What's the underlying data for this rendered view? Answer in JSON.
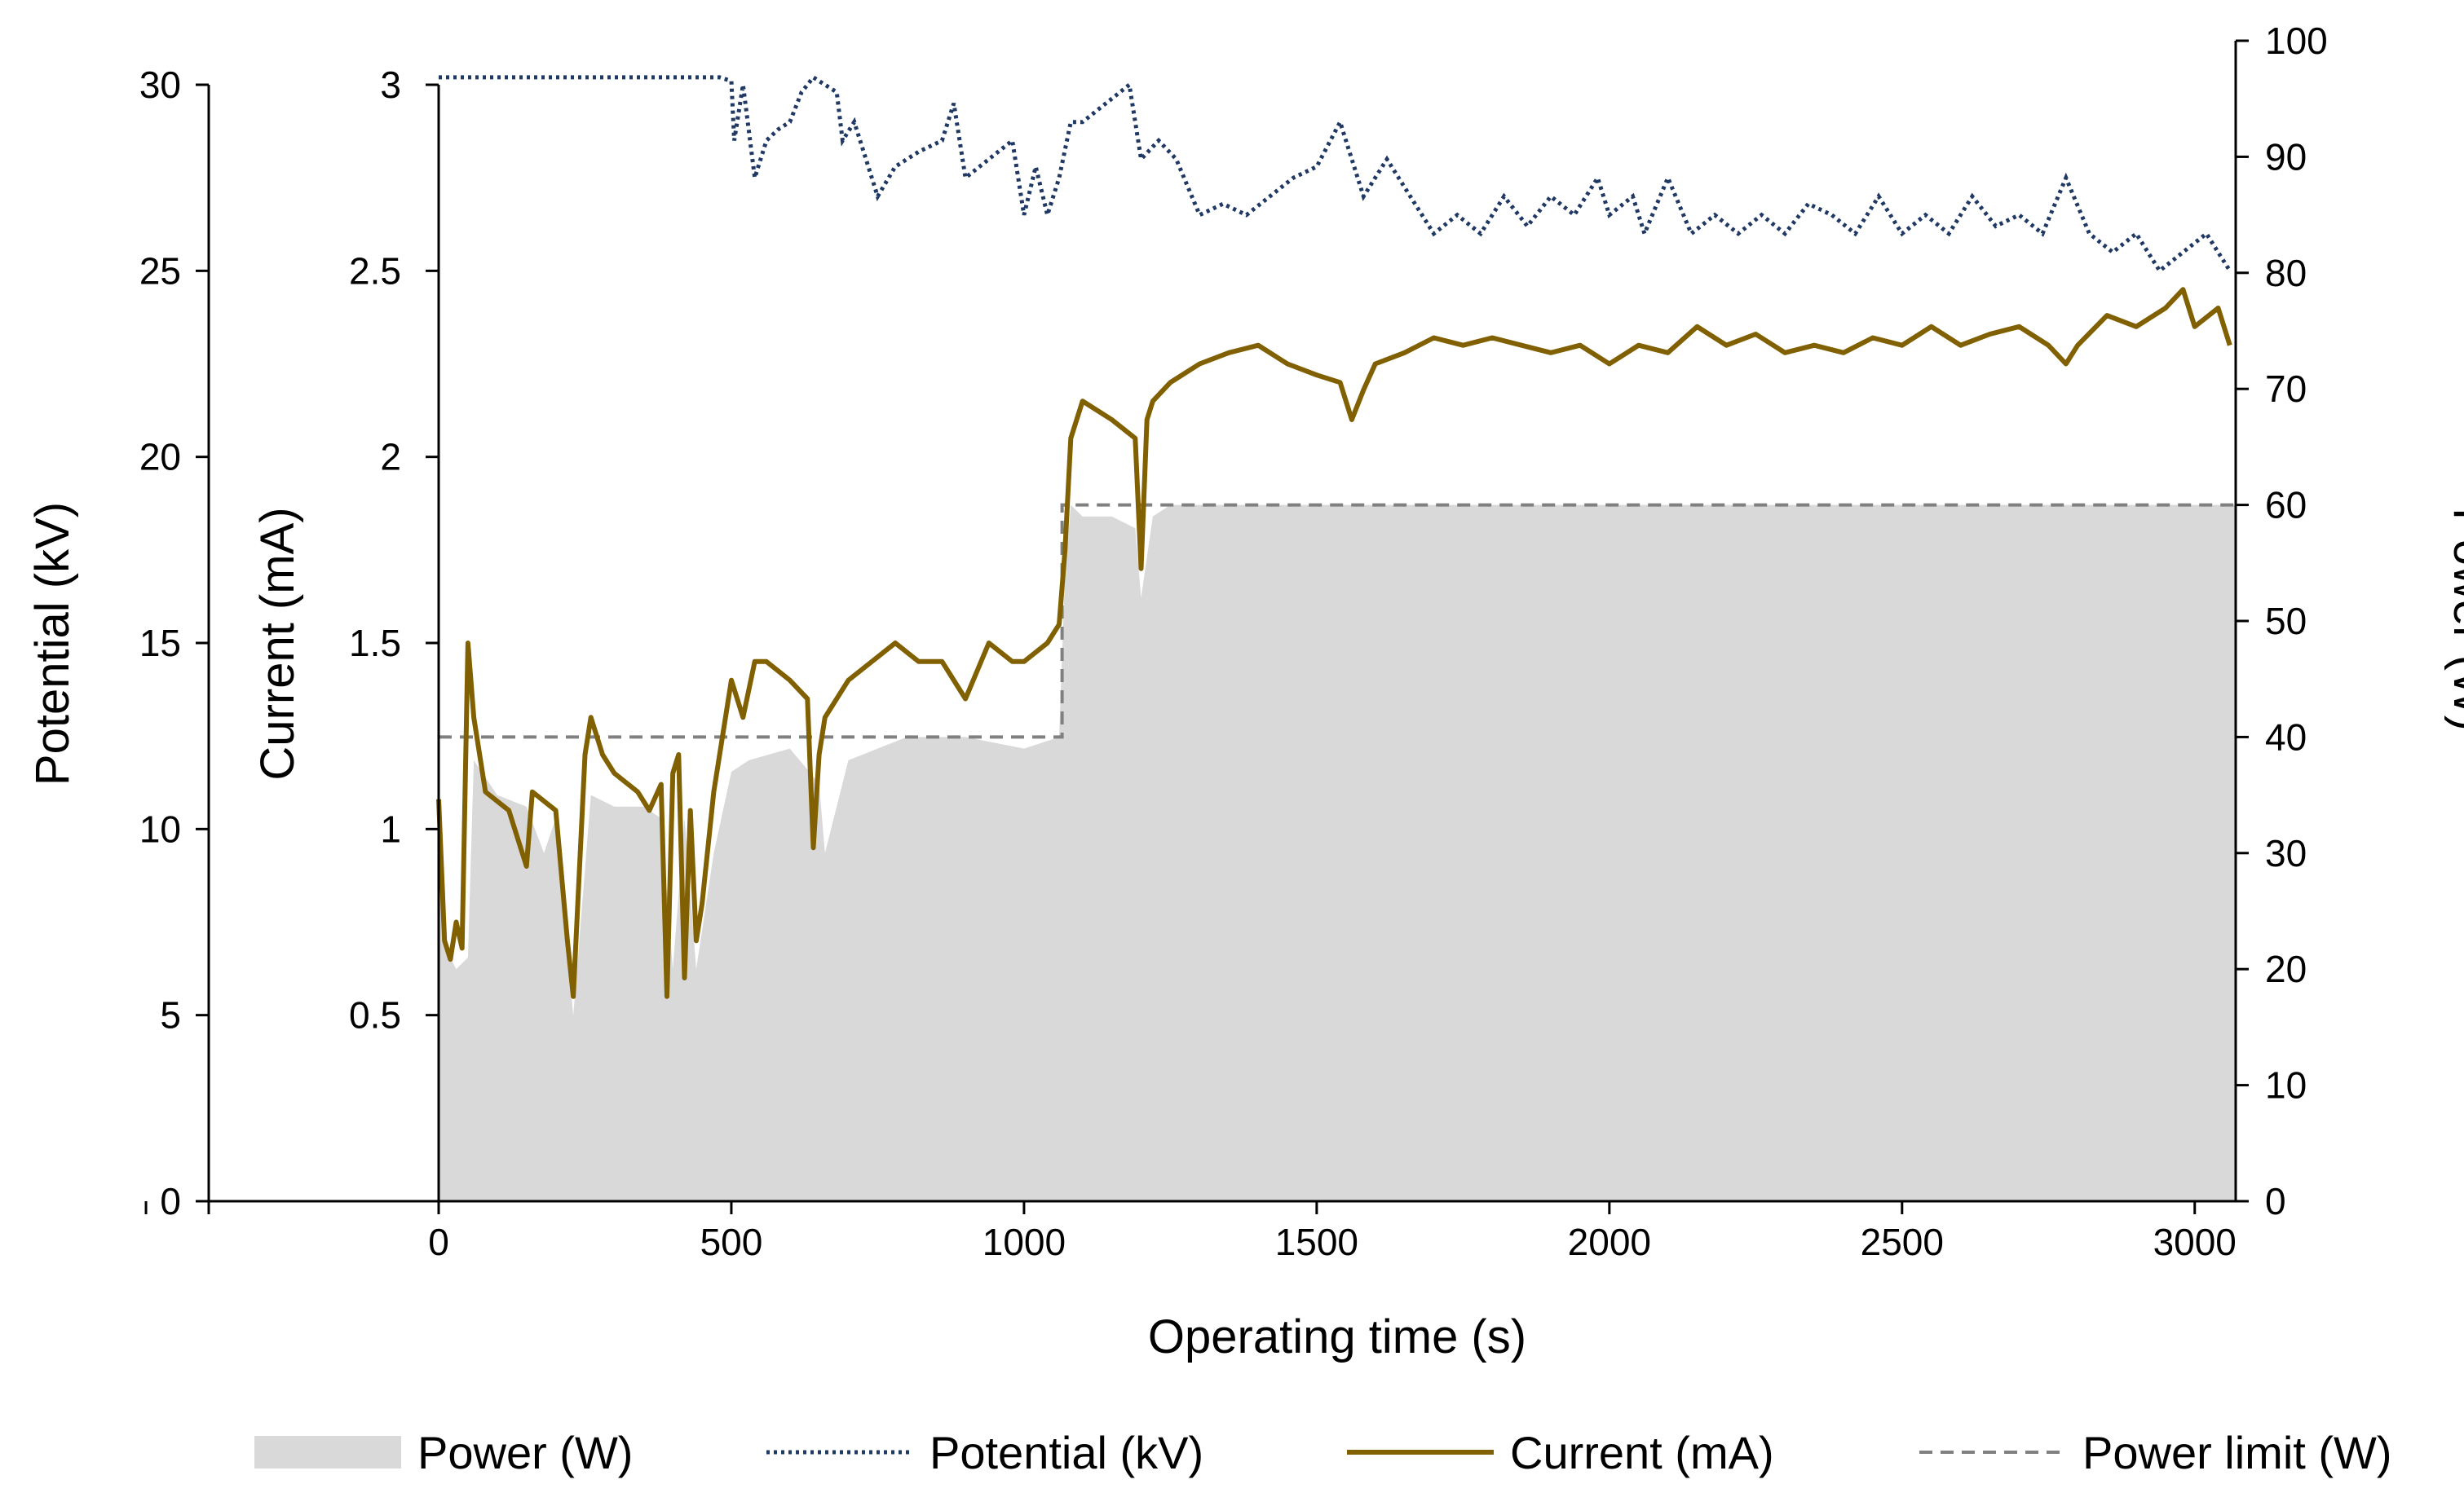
{
  "chart_data": {
    "type": "line",
    "xlabel": "Operating time (s)",
    "x_ticks": [
      "0",
      "500",
      "1000",
      "1500",
      "2000",
      "2500",
      "3000"
    ],
    "xlim": [
      0,
      3070
    ],
    "axes": {
      "potential": {
        "label": "Potential (kV)",
        "ylim": [
          0,
          30
        ],
        "ticks": [
          "0",
          "5",
          "10",
          "15",
          "20",
          "25",
          "30"
        ]
      },
      "current": {
        "label": "Current (mA)",
        "ylim": [
          0,
          3
        ],
        "ticks": [
          "0.5",
          "1",
          "1.5",
          "2",
          "2.5",
          "3"
        ]
      },
      "power": {
        "label": "Power (W)",
        "ylim": [
          0,
          100
        ],
        "ticks": [
          "0",
          "10",
          "20",
          "30",
          "40",
          "50",
          "60",
          "70",
          "80",
          "90",
          "100"
        ]
      }
    },
    "series": [
      {
        "name": "Power (W)",
        "axis": "power",
        "style": "area",
        "color": "#d9d9d9",
        "x": [
          0,
          10,
          30,
          50,
          60,
          100,
          150,
          180,
          200,
          230,
          260,
          300,
          350,
          380,
          400,
          420,
          440,
          470,
          500,
          530,
          600,
          650,
          660,
          700,
          750,
          800,
          900,
          1000,
          1060,
          1070,
          1080,
          1100,
          1150,
          1190,
          1200,
          1220,
          1250,
          1300,
          1500,
          1800,
          2000,
          2500,
          3000,
          3070
        ],
        "values": [
          30,
          22,
          20,
          21,
          38,
          35,
          34,
          30,
          33,
          16,
          35,
          34,
          34,
          33,
          20,
          33,
          20,
          30,
          37,
          38,
          39,
          36,
          30,
          38,
          39,
          40,
          40,
          39,
          40,
          54,
          60,
          59,
          59,
          58,
          52,
          59,
          60,
          60,
          60,
          60,
          60,
          60,
          60,
          60
        ]
      },
      {
        "name": "Potential (kV)",
        "axis": "potential",
        "style": "dotted",
        "color": "#203864",
        "x": [
          0,
          480,
          500,
          505,
          520,
          540,
          560,
          580,
          600,
          620,
          640,
          660,
          680,
          690,
          710,
          730,
          750,
          780,
          820,
          860,
          880,
          900,
          940,
          980,
          1000,
          1020,
          1040,
          1060,
          1080,
          1100,
          1140,
          1180,
          1200,
          1230,
          1260,
          1300,
          1340,
          1380,
          1420,
          1460,
          1500,
          1540,
          1560,
          1580,
          1620,
          1660,
          1700,
          1740,
          1780,
          1820,
          1860,
          1900,
          1940,
          1980,
          2000,
          2040,
          2060,
          2100,
          2140,
          2180,
          2220,
          2260,
          2300,
          2340,
          2380,
          2420,
          2460,
          2500,
          2540,
          2580,
          2620,
          2660,
          2700,
          2740,
          2780,
          2820,
          2860,
          2900,
          2940,
          2980,
          3020,
          3060
        ],
        "values": [
          30.2,
          30.2,
          30.1,
          28.5,
          30.0,
          27.5,
          28.5,
          28.8,
          29.0,
          29.8,
          30.2,
          30.0,
          29.8,
          28.5,
          29.0,
          28.0,
          27.0,
          27.8,
          28.2,
          28.5,
          29.5,
          27.5,
          28.0,
          28.5,
          26.5,
          27.8,
          26.5,
          27.5,
          29.0,
          29.0,
          29.5,
          30.0,
          28.0,
          28.5,
          28.0,
          26.5,
          26.8,
          26.5,
          27.0,
          27.5,
          27.8,
          29.0,
          28.0,
          27.0,
          28.0,
          27.0,
          26.0,
          26.5,
          26.0,
          27.0,
          26.2,
          27.0,
          26.5,
          27.5,
          26.5,
          27.0,
          26.0,
          27.5,
          26.0,
          26.5,
          26.0,
          26.5,
          26.0,
          26.8,
          26.5,
          26.0,
          27.0,
          26.0,
          26.5,
          26.0,
          27.0,
          26.2,
          26.5,
          26.0,
          27.5,
          26.0,
          25.5,
          26.0,
          25.0,
          25.5,
          26.0,
          25.0
        ]
      },
      {
        "name": "Current (mA)",
        "axis": "current",
        "style": "solid",
        "color": "#806000",
        "x": [
          0,
          10,
          20,
          30,
          40,
          50,
          60,
          80,
          120,
          150,
          160,
          200,
          220,
          230,
          250,
          260,
          280,
          300,
          340,
          360,
          380,
          390,
          400,
          410,
          420,
          430,
          440,
          450,
          470,
          500,
          520,
          540,
          560,
          600,
          630,
          640,
          650,
          660,
          700,
          740,
          780,
          820,
          860,
          900,
          940,
          980,
          1000,
          1040,
          1060,
          1070,
          1080,
          1100,
          1150,
          1190,
          1200,
          1210,
          1220,
          1250,
          1300,
          1350,
          1400,
          1450,
          1500,
          1540,
          1560,
          1580,
          1600,
          1650,
          1700,
          1750,
          1800,
          1850,
          1900,
          1950,
          2000,
          2050,
          2100,
          2150,
          2200,
          2250,
          2300,
          2350,
          2400,
          2450,
          2500,
          2550,
          2600,
          2650,
          2700,
          2750,
          2780,
          2800,
          2850,
          2900,
          2950,
          2980,
          3000,
          3040,
          3060
        ],
        "values": [
          1.08,
          0.7,
          0.65,
          0.75,
          0.68,
          1.5,
          1.3,
          1.1,
          1.05,
          0.9,
          1.1,
          1.05,
          0.7,
          0.55,
          1.2,
          1.3,
          1.2,
          1.15,
          1.1,
          1.05,
          1.12,
          0.55,
          1.15,
          1.2,
          0.6,
          1.05,
          0.7,
          0.8,
          1.1,
          1.4,
          1.3,
          1.45,
          1.45,
          1.4,
          1.35,
          0.95,
          1.2,
          1.3,
          1.4,
          1.45,
          1.5,
          1.45,
          1.45,
          1.35,
          1.5,
          1.45,
          1.45,
          1.5,
          1.55,
          1.75,
          2.05,
          2.15,
          2.1,
          2.05,
          1.7,
          2.1,
          2.15,
          2.2,
          2.25,
          2.28,
          2.3,
          2.25,
          2.22,
          2.2,
          2.1,
          2.18,
          2.25,
          2.28,
          2.32,
          2.3,
          2.32,
          2.3,
          2.28,
          2.3,
          2.25,
          2.3,
          2.28,
          2.35,
          2.3,
          2.33,
          2.28,
          2.3,
          2.28,
          2.32,
          2.3,
          2.35,
          2.3,
          2.33,
          2.35,
          2.3,
          2.25,
          2.3,
          2.38,
          2.35,
          2.4,
          2.45,
          2.35,
          2.4,
          2.3
        ]
      },
      {
        "name": "Power limit (W)",
        "axis": "power",
        "style": "dashed",
        "color": "#808080",
        "x": [
          0,
          1065,
          1065,
          3070
        ],
        "values": [
          40,
          40,
          60,
          60
        ]
      }
    ],
    "legend": [
      "Power (W)",
      "Potential (kV)",
      "Current (mA)",
      "Power limit (W)"
    ],
    "legend_position": "bottom"
  }
}
